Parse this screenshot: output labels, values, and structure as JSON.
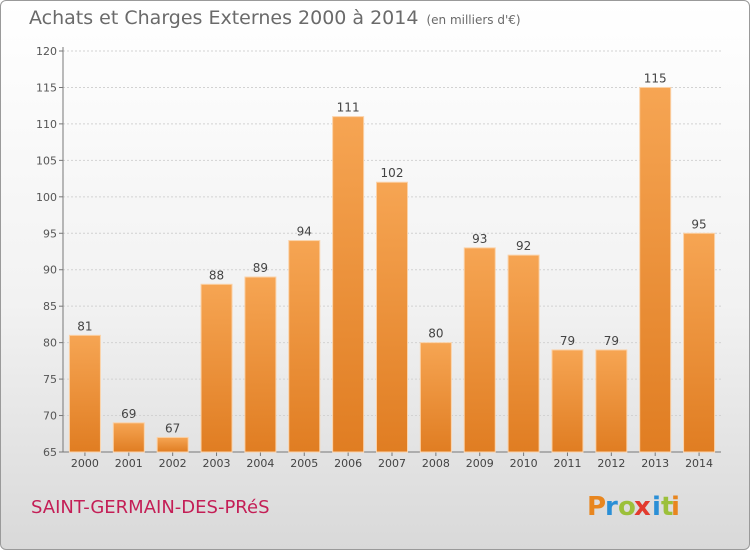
{
  "chart_data": {
    "type": "bar",
    "title": "Achats et Charges Externes 2000 à 2014",
    "subtitle": "(en milliers d'€)",
    "categories": [
      "2000",
      "2001",
      "2002",
      "2003",
      "2004",
      "2005",
      "2006",
      "2007",
      "2008",
      "2009",
      "2010",
      "2011",
      "2012",
      "2013",
      "2014"
    ],
    "values": [
      81,
      69,
      67,
      88,
      89,
      94,
      111,
      102,
      80,
      93,
      92,
      79,
      79,
      115,
      95
    ],
    "ylim": [
      65,
      120
    ],
    "yticks": [
      65,
      70,
      75,
      80,
      85,
      90,
      95,
      100,
      105,
      110,
      115,
      120
    ],
    "grid": true,
    "bar_color": "#f39a45"
  },
  "location": "SAINT-GERMAIN-DES-PRéS",
  "logo": {
    "letters": [
      "P",
      "r",
      "o",
      "x",
      "i",
      "t",
      "i"
    ],
    "colors": [
      "#e8861f",
      "#2a8fd6",
      "#9cc03a",
      "#e23b2e",
      "#2a8fd6",
      "#9cc03a",
      "#e8861f"
    ]
  }
}
